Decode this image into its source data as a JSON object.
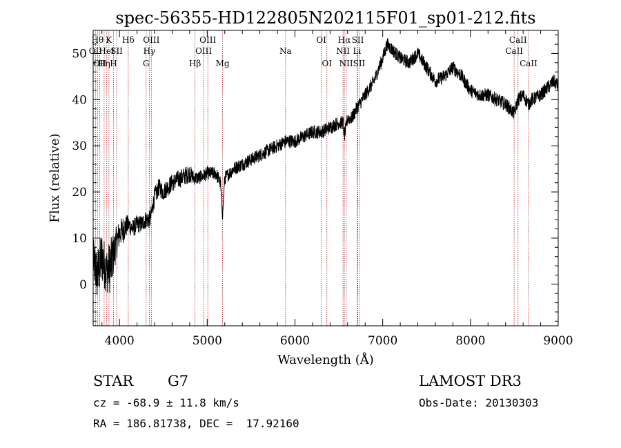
{
  "chart_data": {
    "type": "line",
    "title": "spec-56355-HD122805N202115F01_sp01-212.fits",
    "xlabel": "Wavelength (Å)",
    "ylabel": "Flux (relative)",
    "xlim": [
      3700,
      9000
    ],
    "ylim": [
      -9,
      55
    ],
    "xticks": [
      4000,
      5000,
      6000,
      7000,
      8000,
      9000
    ],
    "yticks": [
      0,
      10,
      20,
      30,
      40,
      50
    ],
    "grid": false,
    "series": [
      {
        "name": "spectrum",
        "x": [
          3700,
          3750,
          3800,
          3850,
          3900,
          3950,
          4000,
          4050,
          4100,
          4150,
          4200,
          4250,
          4300,
          4350,
          4400,
          4450,
          4500,
          4600,
          4700,
          4800,
          4850,
          4900,
          5000,
          5100,
          5150,
          5175,
          5200,
          5300,
          5400,
          5500,
          5600,
          5700,
          5800,
          5900,
          6000,
          6100,
          6200,
          6300,
          6400,
          6500,
          6550,
          6563,
          6600,
          6650,
          6700,
          6800,
          6900,
          7000,
          7050,
          7100,
          7200,
          7300,
          7400,
          7500,
          7600,
          7700,
          7800,
          7900,
          8000,
          8100,
          8200,
          8300,
          8400,
          8450,
          8500,
          8542,
          8600,
          8662,
          8700,
          8800,
          8900,
          8950,
          9000
        ],
        "values": [
          5,
          2,
          6,
          3,
          4,
          8,
          11,
          12,
          13,
          12,
          13,
          13,
          14,
          14,
          19,
          21,
          20,
          22,
          23,
          24,
          23,
          23,
          24,
          24,
          22,
          15,
          23,
          25,
          26,
          27,
          28,
          29,
          30,
          31,
          31,
          32,
          33,
          33,
          34,
          35,
          35,
          32,
          36,
          36,
          38,
          41,
          44,
          49,
          52,
          51,
          49,
          48,
          50,
          47,
          44,
          45,
          47,
          45,
          42,
          41,
          41,
          40,
          39,
          38,
          37,
          40,
          41,
          39,
          40,
          41,
          43,
          44,
          43
        ],
        "noise": [
          5,
          6,
          6,
          5,
          6,
          4,
          3,
          3,
          2,
          2,
          2,
          2,
          2,
          2,
          2,
          2,
          2,
          2,
          2,
          2,
          1.5,
          1.5,
          1.5,
          1.5,
          1.5,
          1.5,
          1.5,
          1.5,
          1.5,
          1.5,
          1.5,
          1.5,
          1.5,
          1.5,
          1.5,
          1.5,
          1.5,
          1.5,
          1.5,
          1.5,
          1.5,
          1.5,
          1.5,
          1.5,
          1.5,
          1.5,
          1.5,
          1.5,
          1.5,
          1.5,
          1.5,
          1.5,
          1.5,
          1.5,
          1.5,
          1.5,
          1.5,
          1.5,
          1.5,
          1.5,
          1.5,
          1.5,
          1.5,
          1.5,
          1.5,
          1.5,
          1.5,
          1.5,
          1.5,
          1.5,
          1.5,
          1.5,
          1.5
        ]
      }
    ],
    "line_markers": [
      {
        "wavelength": 3727,
        "label": "OII",
        "row": 2
      },
      {
        "wavelength": 3750,
        "label": "Hθ",
        "row": 1
      },
      {
        "wavelength": 3775,
        "label": "OII",
        "row": 3
      },
      {
        "wavelength": 3825,
        "label": "Hη",
        "row": 3
      },
      {
        "wavelength": 3855,
        "label": "HeI",
        "row": 2
      },
      {
        "wavelength": 3880,
        "label": "K",
        "row": 1
      },
      {
        "wavelength": 3932,
        "label": "H",
        "row": 3
      },
      {
        "wavelength": 3968,
        "label": "SII",
        "row": 2
      },
      {
        "wavelength": 4100,
        "label": "Hδ",
        "row": 1
      },
      {
        "wavelength": 4304,
        "label": "G",
        "row": 3
      },
      {
        "wavelength": 4340,
        "label": "Hγ",
        "row": 2
      },
      {
        "wavelength": 4363,
        "label": "OIII",
        "row": 1
      },
      {
        "wavelength": 4861,
        "label": "Hβ",
        "row": 3
      },
      {
        "wavelength": 4959,
        "label": "OIII",
        "row": 2
      },
      {
        "wavelength": 5007,
        "label": "OIII",
        "row": 1
      },
      {
        "wavelength": 5175,
        "label": "Mg",
        "row": 3
      },
      {
        "wavelength": 5893,
        "label": "Na",
        "row": 2
      },
      {
        "wavelength": 6300,
        "label": "OI",
        "row": 1
      },
      {
        "wavelength": 6364,
        "label": "OI",
        "row": 3
      },
      {
        "wavelength": 6548,
        "label": "NII",
        "row": 2
      },
      {
        "wavelength": 6563,
        "label": "Hα",
        "row": 1
      },
      {
        "wavelength": 6583,
        "label": "NII",
        "row": 3
      },
      {
        "wavelength": 6707,
        "label": "Li",
        "row": 2
      },
      {
        "wavelength": 6716,
        "label": "SII",
        "row": 1
      },
      {
        "wavelength": 6731,
        "label": "SII",
        "row": 3
      },
      {
        "wavelength": 8498,
        "label": "CaII",
        "row": 2
      },
      {
        "wavelength": 8542,
        "label": "CaII",
        "row": 1
      },
      {
        "wavelength": 8662,
        "label": "CaII",
        "row": 3
      }
    ]
  },
  "info": {
    "class": "STAR",
    "subclass": "G7",
    "survey": "LAMOST DR3",
    "cz": "cz = -68.9 ± 11.8 km/s",
    "obs_date": "Obs-Date: 20130303",
    "coords": "RA = 186.81738, DEC =  17.92160"
  },
  "colors": {
    "spectrum": "#000000",
    "marker": "#b22222"
  }
}
